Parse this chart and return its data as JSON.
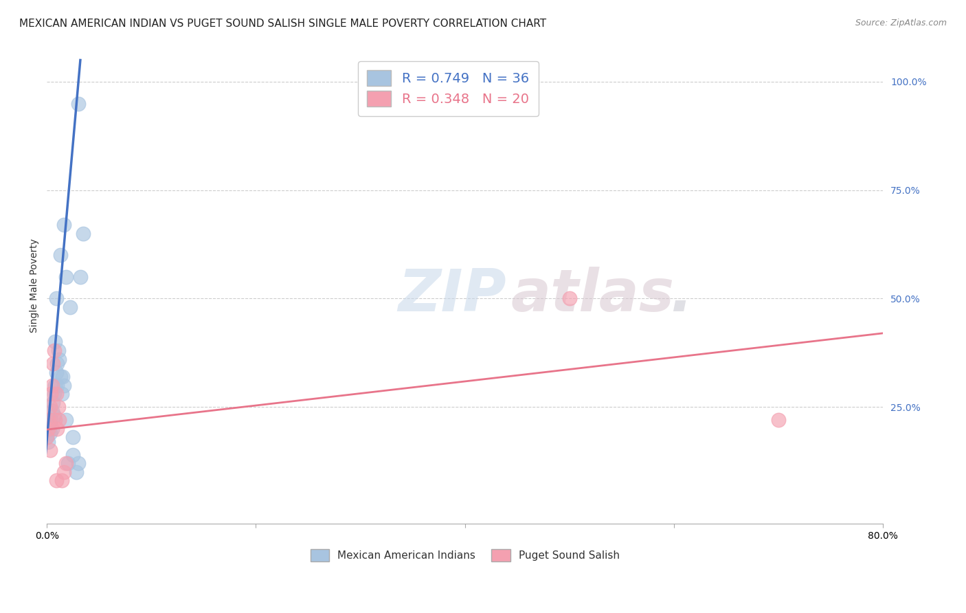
{
  "title": "MEXICAN AMERICAN INDIAN VS PUGET SOUND SALISH SINGLE MALE POVERTY CORRELATION CHART",
  "source": "Source: ZipAtlas.com",
  "ylabel": "Single Male Poverty",
  "xlim": [
    0.0,
    0.8
  ],
  "ylim": [
    -0.02,
    1.08
  ],
  "blue_scatter_x": [
    0.0,
    0.001,
    0.002,
    0.003,
    0.003,
    0.004,
    0.005,
    0.005,
    0.006,
    0.007,
    0.007,
    0.008,
    0.009,
    0.01,
    0.01,
    0.011,
    0.012,
    0.013,
    0.014,
    0.015,
    0.016,
    0.018,
    0.02,
    0.025,
    0.028,
    0.03,
    0.032,
    0.035,
    0.018,
    0.022,
    0.008,
    0.009,
    0.013,
    0.016,
    0.03,
    0.025
  ],
  "blue_scatter_y": [
    0.18,
    0.17,
    0.2,
    0.21,
    0.19,
    0.22,
    0.24,
    0.2,
    0.26,
    0.28,
    0.23,
    0.3,
    0.33,
    0.35,
    0.3,
    0.38,
    0.36,
    0.32,
    0.28,
    0.32,
    0.3,
    0.22,
    0.12,
    0.14,
    0.1,
    0.12,
    0.55,
    0.65,
    0.55,
    0.48,
    0.4,
    0.5,
    0.6,
    0.67,
    0.95,
    0.18
  ],
  "pink_scatter_x": [
    0.0,
    0.001,
    0.002,
    0.003,
    0.004,
    0.005,
    0.006,
    0.007,
    0.008,
    0.009,
    0.01,
    0.011,
    0.012,
    0.014,
    0.016,
    0.018,
    0.5,
    0.7,
    0.009,
    0.003
  ],
  "pink_scatter_y": [
    0.18,
    0.2,
    0.22,
    0.25,
    0.28,
    0.3,
    0.35,
    0.38,
    0.22,
    0.28,
    0.2,
    0.25,
    0.22,
    0.08,
    0.1,
    0.12,
    0.5,
    0.22,
    0.08,
    0.15
  ],
  "blue_line_x": [
    -0.002,
    0.032
  ],
  "blue_line_y": [
    0.12,
    1.05
  ],
  "pink_line_x": [
    -0.01,
    0.8
  ],
  "pink_line_y": [
    0.195,
    0.42
  ],
  "blue_color": "#4472c4",
  "pink_color": "#e8748a",
  "blue_scatter_color": "#a8c4e0",
  "pink_scatter_color": "#f4a0b0",
  "grid_color": "#cccccc",
  "background_color": "#ffffff",
  "title_fontsize": 11,
  "axis_label_fontsize": 10,
  "tick_fontsize": 10,
  "legend_r1": "R = 0.749   N = 36",
  "legend_r2": "R = 0.348   N = 20",
  "watermark1": "ZIP",
  "watermark2": "atlas",
  "watermark3": "."
}
